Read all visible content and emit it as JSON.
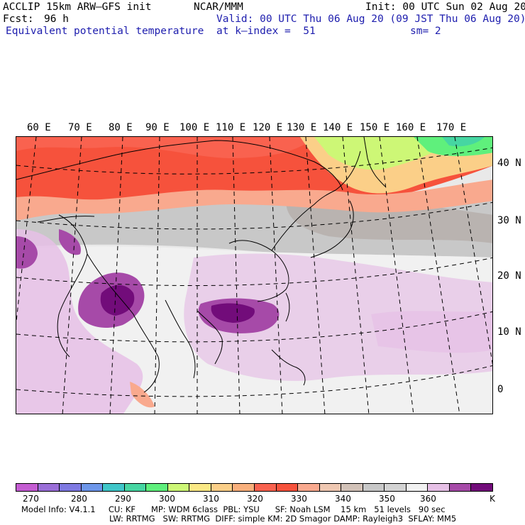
{
  "header": {
    "model_title": "ACCLIP 15km ARW–GFS init",
    "org": "NCAR/MMM",
    "init": "Init: 00 UTC Sun 02 Aug 20",
    "fcst_label": "Fcst:",
    "fcst_value": "96 h",
    "valid": "Valid: 00 UTC Thu 06 Aug 20 (09 JST Thu 06 Aug 20)",
    "field_name": "Equivalent potential temperature",
    "level": "at k–index =  51",
    "smoothing": "sm= 2"
  },
  "map": {
    "lon_labels": [
      "60 E",
      "70 E",
      "80 E",
      "90 E",
      "100 E",
      "110 E",
      "120 E",
      "130 E",
      "140 E",
      "150 E",
      "160 E",
      "170 E"
    ],
    "lat_labels": [
      "40 N",
      "30 N",
      "20 N",
      "10 N",
      "0"
    ]
  },
  "colorbar": {
    "colors": [
      "#c45cd2",
      "#9a6ed8",
      "#7e79e2",
      "#6d96ea",
      "#3fc6c9",
      "#46d6a2",
      "#5ff07c",
      "#cdf776",
      "#fbe985",
      "#fbcf88",
      "#f9b07c",
      "#f9624f",
      "#f6523c",
      "#f9a98e",
      "#efc8b2",
      "#d2c2b8",
      "#c8c8c8",
      "#d3d3d3",
      "#f1f1f1",
      "#e6c0e6",
      "#a64aa8",
      "#720c7a"
    ],
    "tick_labels": [
      "270",
      "280",
      "290",
      "300",
      "310",
      "320",
      "330",
      "340",
      "350",
      "360"
    ],
    "unit": "K"
  },
  "footer": {
    "line1": "Model Info: V4.1.1     CU: KF      MP: WDM 6class  PBL: YSU      SF: Noah LSM    15 km   51 levels   90 sec",
    "line2": "LW: RRTMG   SW: RRTMG  DIFF: simple KM: 2D Smagor DAMP: Rayleigh3  SFLAY: MM5"
  },
  "colors": {
    "header_blue": "#1d1dae",
    "warm_red": "#f6523c",
    "tropical_purple": "#720c7a",
    "ocean_gray": "#e9e9e9"
  }
}
